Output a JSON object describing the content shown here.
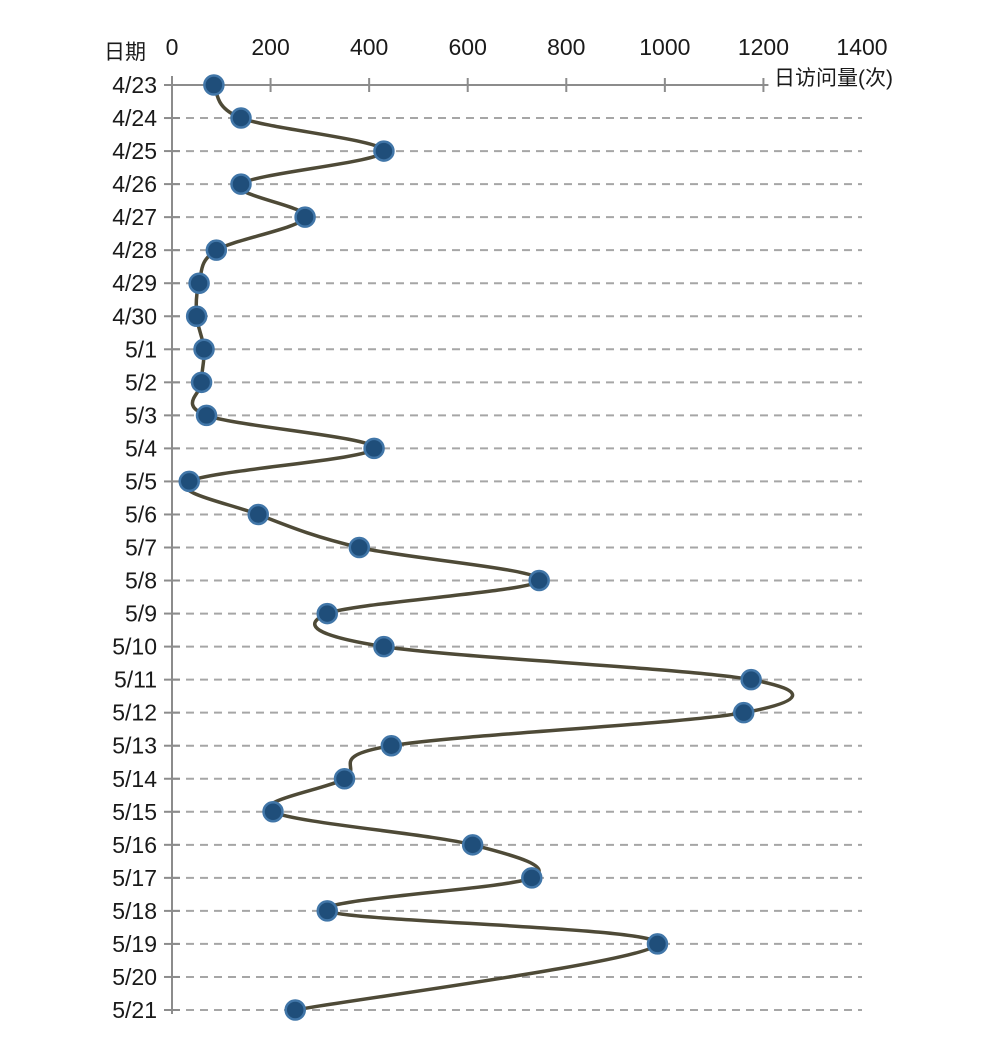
{
  "chart_data": {
    "type": "line",
    "subtype": "smooth-line-with-markers",
    "orientation": "categories-vertical-top-to-bottom",
    "title": "",
    "category_axis": {
      "label": "日期",
      "position": "left"
    },
    "value_axis": {
      "label": "日访问量(次)",
      "position": "top",
      "min": 0,
      "max": 1400,
      "tick_interval": 200,
      "tick_labels": [
        "0",
        "200",
        "400",
        "600",
        "800",
        "1000",
        "1200",
        "1400"
      ]
    },
    "categories": [
      "4/23",
      "4/24",
      "4/25",
      "4/26",
      "4/27",
      "4/28",
      "4/29",
      "4/30",
      "5/1",
      "5/2",
      "5/3",
      "5/4",
      "5/5",
      "5/6",
      "5/7",
      "5/8",
      "5/9",
      "5/10",
      "5/11",
      "5/12",
      "5/13",
      "5/14",
      "5/15",
      "5/16",
      "5/17",
      "5/18",
      "5/19",
      "5/20",
      "5/21"
    ],
    "series": [
      {
        "name": "日访问量",
        "values": [
          85,
          140,
          430,
          140,
          270,
          90,
          55,
          50,
          65,
          60,
          70,
          410,
          35,
          175,
          380,
          745,
          315,
          430,
          1175,
          1160,
          445,
          350,
          205,
          610,
          730,
          315,
          985,
          null,
          250
        ]
      }
    ],
    "grid": {
      "horizontal_dashed": true,
      "vertical": false
    },
    "legend": {
      "visible": false
    },
    "colors": {
      "marker_fill": "#1f4e7a",
      "marker_edge": "#4176a8",
      "line": "#4e4a37",
      "axis": "#8c8c8c",
      "grid": "#a6a6a6",
      "text": "#1a1a1a"
    }
  }
}
